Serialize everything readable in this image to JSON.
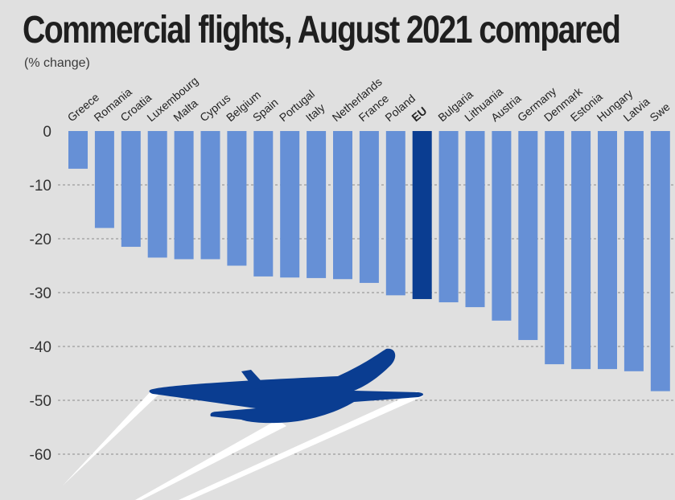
{
  "header": {
    "title": "Commercial flights, August 2021 compared",
    "subtitle": "(% change)"
  },
  "colors": {
    "background": "#e0e0e0",
    "bar": "#6690d6",
    "bar_highlight": "#0a3d91",
    "plane": "#0a3d91",
    "trail": "#ffffff"
  },
  "chart_data": {
    "type": "bar",
    "categories": [
      "Greece",
      "Romania",
      "Croatia",
      "Luxembourg",
      "Malta",
      "Cyprus",
      "Belgium",
      "Spain",
      "Portugal",
      "Italy",
      "Netherlands",
      "France",
      "Poland",
      "EU",
      "Bulgaria",
      "Lithuania",
      "Austria",
      "Germany",
      "Denmark",
      "Estonia",
      "Hungary",
      "Latvia",
      "Swe"
    ],
    "values": [
      -7,
      -18,
      -21.5,
      -23.5,
      -23.8,
      -23.8,
      -25,
      -27,
      -27.2,
      -27.3,
      -27.5,
      -28.2,
      -30.5,
      -31.2,
      -31.8,
      -32.7,
      -35.2,
      -38.8,
      -43.3,
      -44.2,
      -44.2,
      -44.6,
      -48.3
    ],
    "highlight": "EU",
    "ylim": [
      -62,
      0
    ],
    "yticks": [
      0,
      -10,
      -20,
      -30,
      -40,
      -50,
      -60
    ],
    "ytick_labels": [
      "0",
      "-10",
      "-20",
      "-30",
      "-40",
      "-50",
      "-60"
    ],
    "grid": true,
    "xlabel": "",
    "ylabel": ""
  },
  "decoration": {
    "icon": "airplane-icon"
  }
}
